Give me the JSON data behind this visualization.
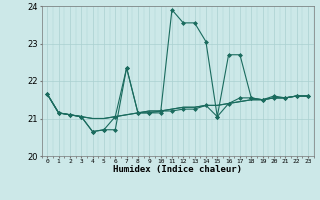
{
  "title": "",
  "xlabel": "Humidex (Indice chaleur)",
  "ylabel": "",
  "bg_color": "#cce8e8",
  "grid_color": "#aad0d0",
  "line_color": "#1a6b5e",
  "xlim": [
    -0.5,
    23.5
  ],
  "ylim": [
    20,
    24
  ],
  "yticks": [
    20,
    21,
    22,
    23,
    24
  ],
  "series": [
    [
      21.65,
      21.15,
      21.1,
      21.05,
      20.65,
      20.7,
      20.7,
      22.35,
      21.15,
      21.15,
      21.15,
      23.9,
      23.55,
      23.55,
      23.05,
      21.05,
      22.7,
      22.7,
      21.55,
      21.5,
      21.6,
      21.55,
      21.6,
      21.6
    ],
    [
      21.65,
      21.15,
      21.1,
      21.05,
      20.65,
      20.7,
      21.05,
      22.35,
      21.15,
      21.15,
      21.2,
      21.2,
      21.25,
      21.25,
      21.35,
      21.05,
      21.4,
      21.55,
      21.55,
      21.5,
      21.55,
      21.55,
      21.6,
      21.6
    ],
    [
      21.65,
      21.15,
      21.1,
      21.05,
      21.0,
      21.0,
      21.05,
      21.1,
      21.15,
      21.2,
      21.2,
      21.25,
      21.3,
      21.3,
      21.35,
      21.35,
      21.4,
      21.45,
      21.5,
      21.5,
      21.55,
      21.55,
      21.6,
      21.6
    ],
    [
      21.65,
      21.15,
      21.1,
      21.05,
      21.0,
      21.0,
      21.05,
      21.1,
      21.15,
      21.2,
      21.2,
      21.25,
      21.3,
      21.3,
      21.35,
      21.35,
      21.4,
      21.45,
      21.5,
      21.5,
      21.55,
      21.55,
      21.6,
      21.6
    ]
  ],
  "marker_series": [
    0,
    1
  ],
  "marker_style": "D",
  "marker_size": 2.0
}
